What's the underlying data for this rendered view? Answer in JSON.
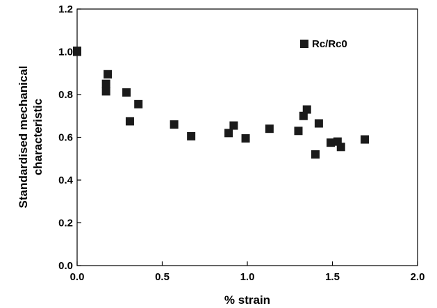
{
  "chart_data": {
    "type": "scatter",
    "title": "",
    "xlabel": "% strain",
    "ylabel_lines": [
      "Standardised mechanical",
      "characteristic"
    ],
    "xlim": [
      0.0,
      2.0
    ],
    "ylim": [
      0.0,
      1.2
    ],
    "xticks": [
      "0.0",
      "0.5",
      "1.0",
      "1.5",
      "2.0"
    ],
    "yticks": [
      "0.0",
      "0.2",
      "0.4",
      "0.6",
      "0.8",
      "1.0",
      "1.2"
    ],
    "grid": false,
    "legend": "top-right",
    "marker_color": "#1a1a1a",
    "series": [
      {
        "name": "Rc/Rc0",
        "marker": "square",
        "x": [
          0.0,
          0.0,
          0.17,
          0.17,
          0.18,
          0.29,
          0.31,
          0.36,
          0.57,
          0.67,
          0.89,
          0.92,
          0.99,
          1.13,
          1.3,
          1.33,
          1.35,
          1.4,
          1.42,
          1.49,
          1.53,
          1.55,
          1.69
        ],
        "y": [
          1.0,
          1.005,
          0.815,
          0.85,
          0.895,
          0.81,
          0.675,
          0.755,
          0.66,
          0.605,
          0.62,
          0.655,
          0.595,
          0.64,
          0.63,
          0.7,
          0.73,
          0.52,
          0.665,
          0.575,
          0.58,
          0.555,
          0.59
        ]
      }
    ]
  }
}
